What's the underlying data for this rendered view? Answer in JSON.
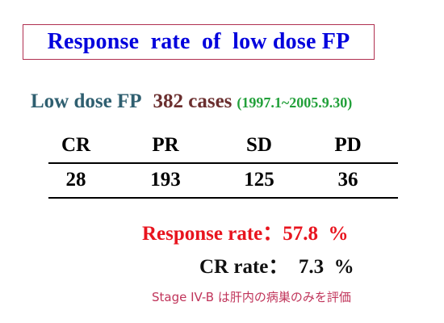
{
  "title": "Response  rate  of  low dose FP",
  "subtitle": {
    "label": "Low dose FP",
    "cases": "382 cases",
    "dates": "(1997.1~2005.9.30)"
  },
  "table": {
    "headers": [
      "CR",
      "PR",
      "SD",
      "PD"
    ],
    "values": [
      "28",
      "193",
      "125",
      "36"
    ]
  },
  "response_rate": "Response rate：57.8  %",
  "cr_rate": "CR rate：  7.3  %",
  "note": "Stage IV-B は肝内の病巣のみを評価",
  "colors": {
    "title": "#0000dd",
    "title_border": "#b03050",
    "response_rate": "#e8141e",
    "note": "#c0345a",
    "dates": "#22a03a"
  }
}
